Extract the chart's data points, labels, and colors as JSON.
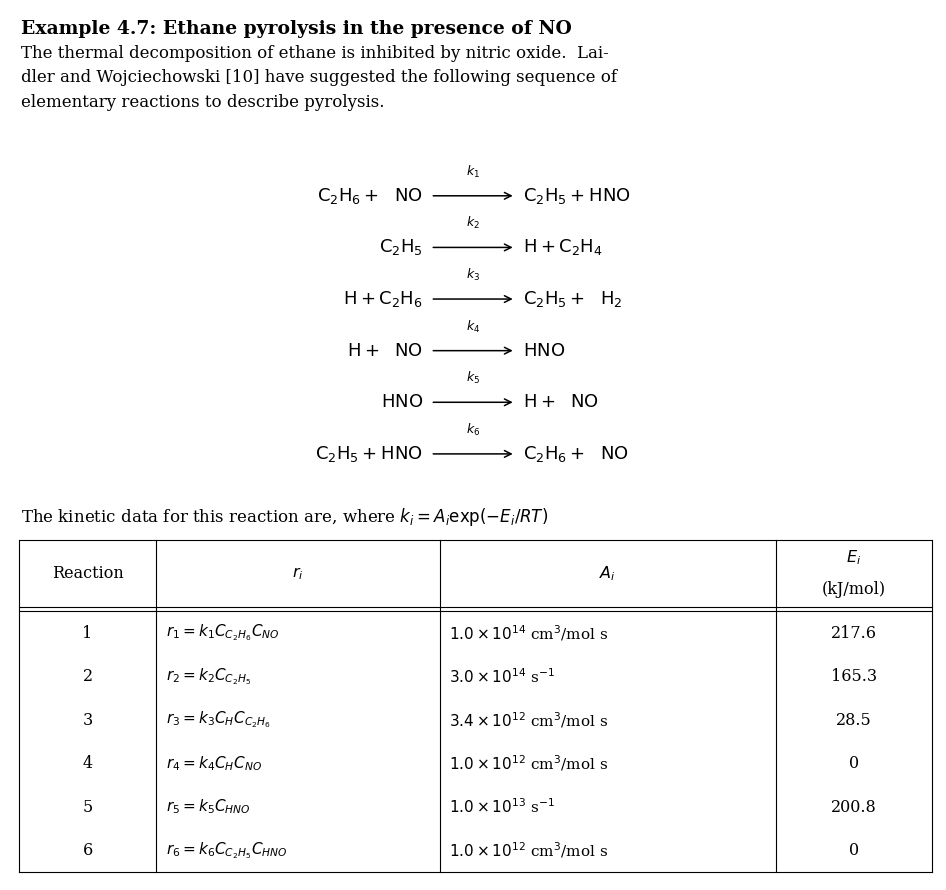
{
  "bg_color": "#ffffff",
  "title": "Example 4.7: Ethane pyrolysis in the presence of NO",
  "para_line1": "The thermal decomposition of ethane is inhibited by nitric oxide.  Lai-",
  "para_line2": "dler and Wojciechowski [10] have suggested the following sequence of",
  "para_line3": "elementary reactions to describe pyrolysis.",
  "kinetic_line": "The kinetic data for this reaction are, where $k_i = A_i \\exp(-E_i/RT)$",
  "eq_font_size": 13,
  "body_font_size": 12,
  "table_font_size": 11.5,
  "title_font_size": 13.5,
  "reactions_left": [
    "$\\mathrm{C_2H_6 +\\ \\ NO}$",
    "$\\mathrm{C_2H_5}$",
    "$\\mathrm{H + C_2H_6}$",
    "$\\mathrm{H +\\ \\ NO}$",
    "$\\mathrm{HNO}$",
    "$\\mathrm{C_2H_5 + HNO}$"
  ],
  "reactions_k": [
    "$k_1$",
    "$k_2$",
    "$k_3$",
    "$k_4$",
    "$k_5$",
    "$k_6$"
  ],
  "reactions_right": [
    "$\\mathrm{C_2H_5 + HNO}$",
    "$\\mathrm{H + C_2H_4}$",
    "$\\mathrm{C_2H_5 +\\ \\ H_2}$",
    "$\\mathrm{HNO}$",
    "$\\mathrm{H +\\ \\ NO}$",
    "$\\mathrm{C_2H_6 +\\ \\ NO}$"
  ],
  "col_bounds": [
    0.02,
    0.165,
    0.465,
    0.82,
    0.985
  ],
  "header_row": [
    "Reaction",
    "$r_i$",
    "$A_i$",
    "$E_i$"
  ],
  "header_row2": [
    "",
    "",
    "",
    "(kJ/mol)"
  ],
  "table_rows": [
    [
      "1",
      "$r_1 = k_1 C_{C_2H_6} C_{NO}$",
      "$1.0 \\times 10^{14}$ cm$^3$/mol s",
      "217.6"
    ],
    [
      "2",
      "$r_2 = k_2 C_{C_2H_5}$",
      "$3.0 \\times 10^{14}$ s$^{-1}$",
      "165.3"
    ],
    [
      "3",
      "$r_3 = k_3 C_H C_{C_2H_6}$",
      "$3.4 \\times 10^{12}$ cm$^3$/mol s",
      "28.5"
    ],
    [
      "4",
      "$r_4 = k_4 C_H C_{NO}$",
      "$1.0 \\times 10^{12}$ cm$^3$/mol s",
      "0"
    ],
    [
      "5",
      "$r_5 = k_5 C_{HNO}$",
      "$1.0 \\times 10^{13}$ s$^{-1}$",
      "200.8"
    ],
    [
      "6",
      "$r_6 = k_6 C_{C_2H_5} C_{HNO}$",
      "$1.0 \\times 10^{12}$ cm$^3$/mol s",
      "0"
    ]
  ]
}
